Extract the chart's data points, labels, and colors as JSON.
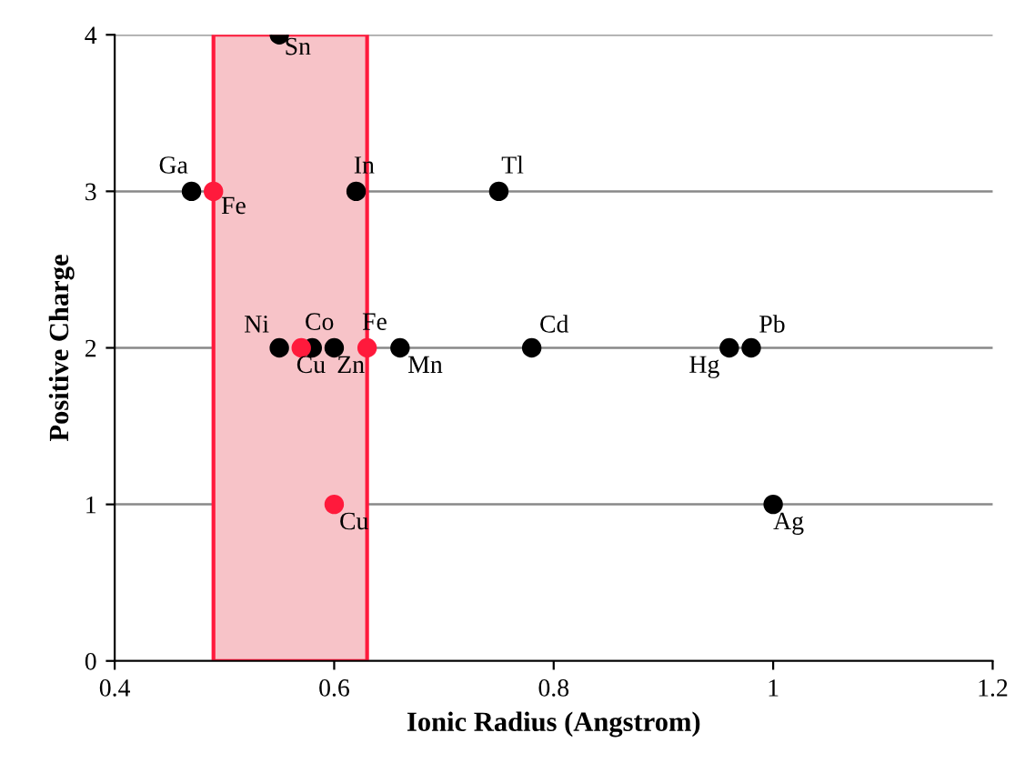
{
  "chart_data": {
    "type": "scatter",
    "xlabel": "Ionic Radius (Angstrom)",
    "ylabel": "Positive Charge",
    "series": [
      {
        "color": "#000000",
        "x": [
          0.55,
          0.47,
          0.62,
          0.75,
          0.55,
          0.58,
          0.6,
          0.66,
          0.78,
          0.96,
          0.98,
          1.0
        ],
        "values": [
          4,
          3,
          3,
          3,
          2,
          2,
          2,
          2,
          2,
          2,
          2,
          1
        ]
      },
      {
        "color": "#ff1a3c",
        "x": [
          0.49,
          0.57,
          0.63,
          0.6
        ],
        "values": [
          3,
          2,
          2,
          1
        ]
      }
    ],
    "marker": "circle",
    "annotations": [
      {
        "text": "Sn",
        "x": 0.55,
        "y": 4
      },
      {
        "text": "Ga",
        "x": 0.47,
        "y": 3
      },
      {
        "text": "Fe",
        "x": 0.49,
        "y": 3
      },
      {
        "text": "In",
        "x": 0.62,
        "y": 3
      },
      {
        "text": "Tl",
        "x": 0.75,
        "y": 3
      },
      {
        "text": "Ni",
        "x": 0.55,
        "y": 2
      },
      {
        "text": "Cu",
        "x": 0.57,
        "y": 2
      },
      {
        "text": "Co",
        "x": 0.58,
        "y": 2
      },
      {
        "text": "Zn",
        "x": 0.6,
        "y": 2
      },
      {
        "text": "Fe",
        "x": 0.63,
        "y": 2
      },
      {
        "text": "Mn",
        "x": 0.66,
        "y": 2
      },
      {
        "text": "Cd",
        "x": 0.78,
        "y": 2
      },
      {
        "text": "Hg",
        "x": 0.96,
        "y": 2
      },
      {
        "text": "Pb",
        "x": 0.98,
        "y": 2
      },
      {
        "text": "Ag",
        "x": 1.0,
        "y": 1
      },
      {
        "text": "Cu",
        "x": 0.6,
        "y": 1
      }
    ],
    "bands": [
      {
        "axis": "x",
        "from": 0.49,
        "to": 0.63,
        "color": "#f7c3c8"
      }
    ],
    "xlim": [
      0.4,
      1.2
    ],
    "xticks": [
      0.4,
      0.6,
      0.8,
      1,
      1.2
    ],
    "ylim": [
      0,
      4
    ],
    "yticks": [
      0,
      1,
      2,
      3,
      4
    ],
    "grid": "y"
  }
}
